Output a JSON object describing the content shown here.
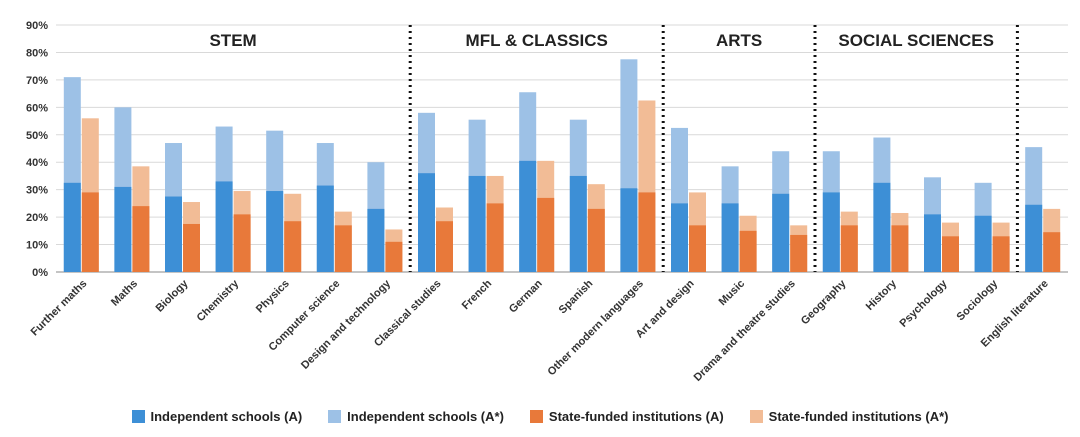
{
  "chart_data": {
    "type": "bar",
    "categories": [
      "Further maths",
      "Maths",
      "Biology",
      "Chemistry",
      "Physics",
      "Computer science",
      "Design and technology",
      "Classical studies",
      "French",
      "German",
      "Spanish",
      "Other modern languages",
      "Art and design",
      "Music",
      "Drama and theatre studies",
      "Geography",
      "History",
      "Psychology",
      "Sociology",
      "English literature"
    ],
    "groups": [
      {
        "label": "STEM",
        "start": 0,
        "end": 6
      },
      {
        "label": "MFL & CLASSICS",
        "start": 7,
        "end": 11
      },
      {
        "label": "ARTS",
        "start": 12,
        "end": 14
      },
      {
        "label": "SOCIAL SCIENCES",
        "start": 15,
        "end": 18
      }
    ],
    "series": [
      {
        "name": "Independent schools (A)",
        "color": "#3d8fd6",
        "values": [
          32.5,
          31,
          27.5,
          33,
          29.5,
          31.5,
          23,
          36,
          35,
          40.5,
          35,
          30.5,
          25,
          25,
          28.5,
          29,
          32.5,
          21,
          20.5,
          24.5
        ]
      },
      {
        "name": "Independent schools (A*)",
        "color": "#9dc1e6",
        "values": [
          71,
          60,
          47,
          53,
          51.5,
          47,
          40,
          58,
          55.5,
          65.5,
          55.5,
          77.5,
          52.5,
          38.5,
          44,
          44,
          49,
          34.5,
          32.5,
          45.5
        ]
      },
      {
        "name": "State-funded institutions (A)",
        "color": "#e8793a",
        "values": [
          29,
          24,
          17.5,
          21,
          18.5,
          17,
          11,
          18.5,
          25,
          27,
          23,
          29,
          17,
          15,
          13.5,
          17,
          17,
          13,
          13,
          14.5
        ]
      },
      {
        "name": "State-funded institutions (A*)",
        "color": "#f2bc96",
        "values": [
          56,
          38.5,
          25.5,
          29.5,
          28.5,
          22,
          15.5,
          23.5,
          35,
          40.5,
          32,
          62.5,
          29,
          20.5,
          17,
          22,
          21.5,
          18,
          18,
          23
        ]
      }
    ],
    "ylim": [
      0,
      90
    ],
    "yticks": [
      "0%",
      "10%",
      "20%",
      "30%",
      "40%",
      "50%",
      "60%",
      "70%",
      "80%",
      "90%"
    ],
    "grid": true
  }
}
